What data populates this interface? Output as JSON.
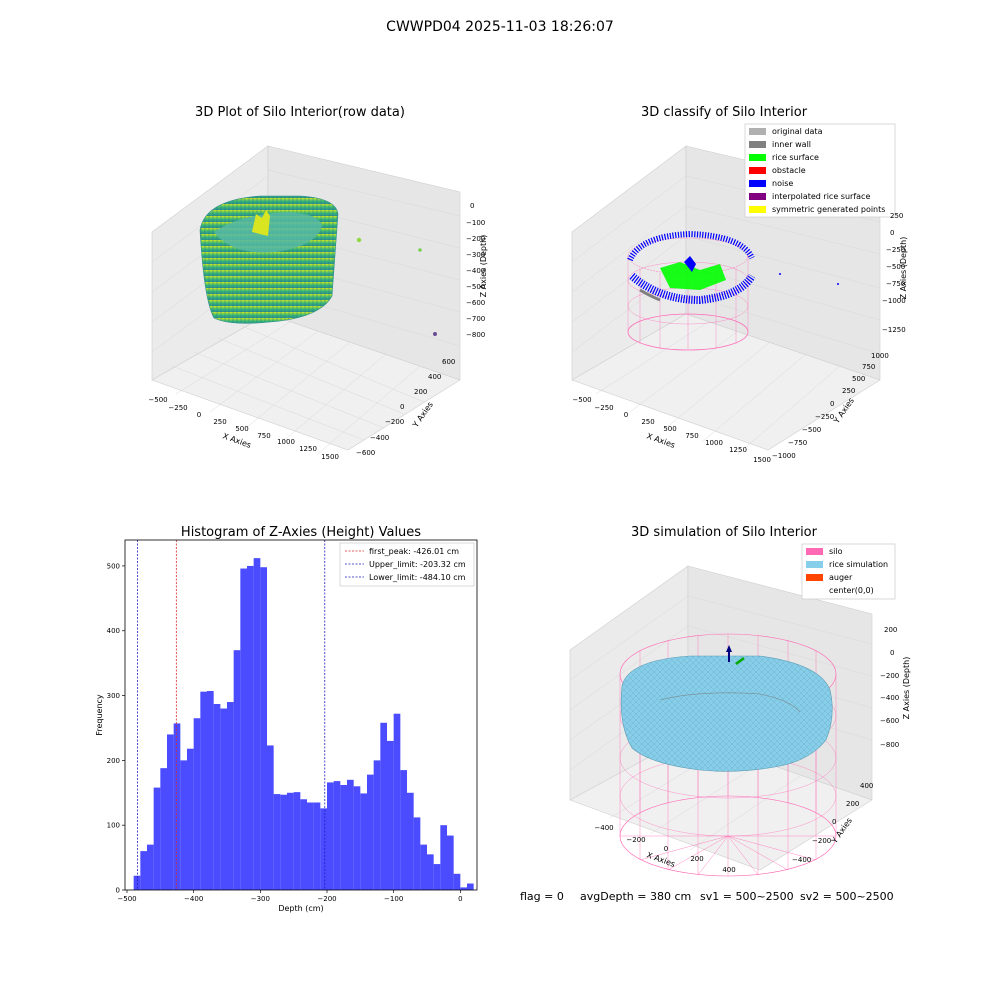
{
  "figure": {
    "suptitle": "CWWPD04 2025-11-03 18:26:07",
    "footer": {
      "flag": "flag = 0",
      "avg_depth": "avgDepth = 380 cm",
      "sv1": "sv1 = 500~2500",
      "sv2": "sv2 = 500~2500"
    }
  },
  "colors": {
    "hist_bar": "#4b4bff",
    "first_peak_line": "#d62728",
    "limit_lines": "#1f1fbf",
    "silo": "#ff69b4",
    "rice_simulation": "#87ceeb",
    "auger": "#ff4500",
    "original_data": "#b0b0b0",
    "inner_wall": "#808080",
    "rice_surface": "#00ff00",
    "obstacle": "#ff0000",
    "noise": "#0000ff",
    "interpolated_rice_surface": "#800080",
    "symmetric_generated_points": "#ffff00"
  },
  "chart_data": [
    {
      "type": "scatter",
      "title": "3D Plot of Silo Interior(row data)",
      "xlabel": "X Axies",
      "ylabel": "Y Axies",
      "zlabel": "Z Axies (Depth)",
      "x_ticks": [
        "−500",
        "−250",
        "0",
        "250",
        "500",
        "750",
        "1000",
        "1250",
        "1500"
      ],
      "y_ticks": [
        "−600",
        "−400",
        "−200",
        "0",
        "200",
        "400",
        "600"
      ],
      "z_ticks": [
        "0",
        "−100",
        "−200",
        "−300",
        "−400",
        "−500",
        "−600",
        "−700",
        "−800"
      ],
      "xlim": [
        -550,
        1550
      ],
      "ylim": [
        -650,
        650
      ],
      "zlim": [
        -850,
        50
      ],
      "colormap": "viridis"
    },
    {
      "type": "scatter",
      "title": "3D classify of Silo Interior",
      "xlabel": "X Axies",
      "ylabel": "Y Axies",
      "zlabel": "Z Axies (Depth)",
      "x_ticks": [
        "−500",
        "−250",
        "0",
        "250",
        "500",
        "750",
        "1000",
        "1250",
        "1500"
      ],
      "y_ticks": [
        "−1000",
        "−750",
        "−500",
        "−250",
        "0",
        "250",
        "500",
        "750",
        "1000"
      ],
      "z_ticks": [
        "250",
        "0",
        "−250",
        "−500",
        "−750",
        "−1000",
        "−1250"
      ],
      "xlim": [
        -550,
        1550
      ],
      "ylim": [
        -1050,
        1050
      ],
      "zlim": [
        -1350,
        350
      ],
      "legend": [
        "original data",
        "inner wall",
        "rice surface",
        "obstacle",
        "noise",
        "interpolated rice surface",
        "symmetric generated points"
      ],
      "legend_position": "top-right"
    },
    {
      "type": "bar",
      "title": "Histogram of Z-Axies (Height) Values",
      "xlabel": "Depth (cm)",
      "ylabel": "Frequency",
      "bin_start": -490,
      "bin_width": 10,
      "values": [
        22,
        60,
        70,
        158,
        188,
        240,
        257,
        200,
        218,
        265,
        306,
        307,
        287,
        280,
        290,
        370,
        496,
        500,
        512,
        498,
        223,
        148,
        147,
        150,
        151,
        140,
        135,
        135,
        126,
        166,
        168,
        162,
        170,
        160,
        149,
        178,
        200,
        258,
        230,
        272,
        185,
        150,
        112,
        70,
        55,
        40,
        100,
        84,
        25,
        4,
        10
      ],
      "xlim": [
        -503,
        25
      ],
      "ylim": [
        0,
        540
      ],
      "x_ticks": [
        -500,
        -400,
        -300,
        -200,
        -100,
        0
      ],
      "x_tick_labels": [
        "−500",
        "−400",
        "−300",
        "−200",
        "−100",
        "0"
      ],
      "y_ticks": [
        0,
        100,
        200,
        300,
        400,
        500
      ],
      "y_tick_labels": [
        "0",
        "100",
        "200",
        "300",
        "400",
        "500"
      ],
      "vlines": [
        {
          "label": "first_peak: -426.01 cm",
          "x": -426.01,
          "color": "#d62728"
        },
        {
          "label": "Upper_limit: -203.32 cm",
          "x": -203.32,
          "color": "#1f1fbf"
        },
        {
          "label": "Lower_limit: -484.10 cm",
          "x": -484.1,
          "color": "#1f1fbf"
        }
      ],
      "legend_position": "top-right"
    },
    {
      "type": "area",
      "title": "3D simulation of Silo Interior",
      "xlabel": "X Axies",
      "ylabel": "Y Axies",
      "zlabel": "Z Axies (Depth)",
      "x_ticks": [
        "−400",
        "−200",
        "0",
        "200",
        "400"
      ],
      "y_ticks": [
        "−400",
        "−200",
        "0",
        "200",
        "400"
      ],
      "z_ticks": [
        "200",
        "0",
        "−200",
        "−400",
        "−600",
        "−800"
      ],
      "xlim": [
        -500,
        500
      ],
      "ylim": [
        -500,
        500
      ],
      "zlim": [
        -900,
        250
      ],
      "legend": [
        "silo",
        "rice simulation",
        "auger",
        "center(0,0)"
      ],
      "legend_position": "top-right"
    }
  ]
}
